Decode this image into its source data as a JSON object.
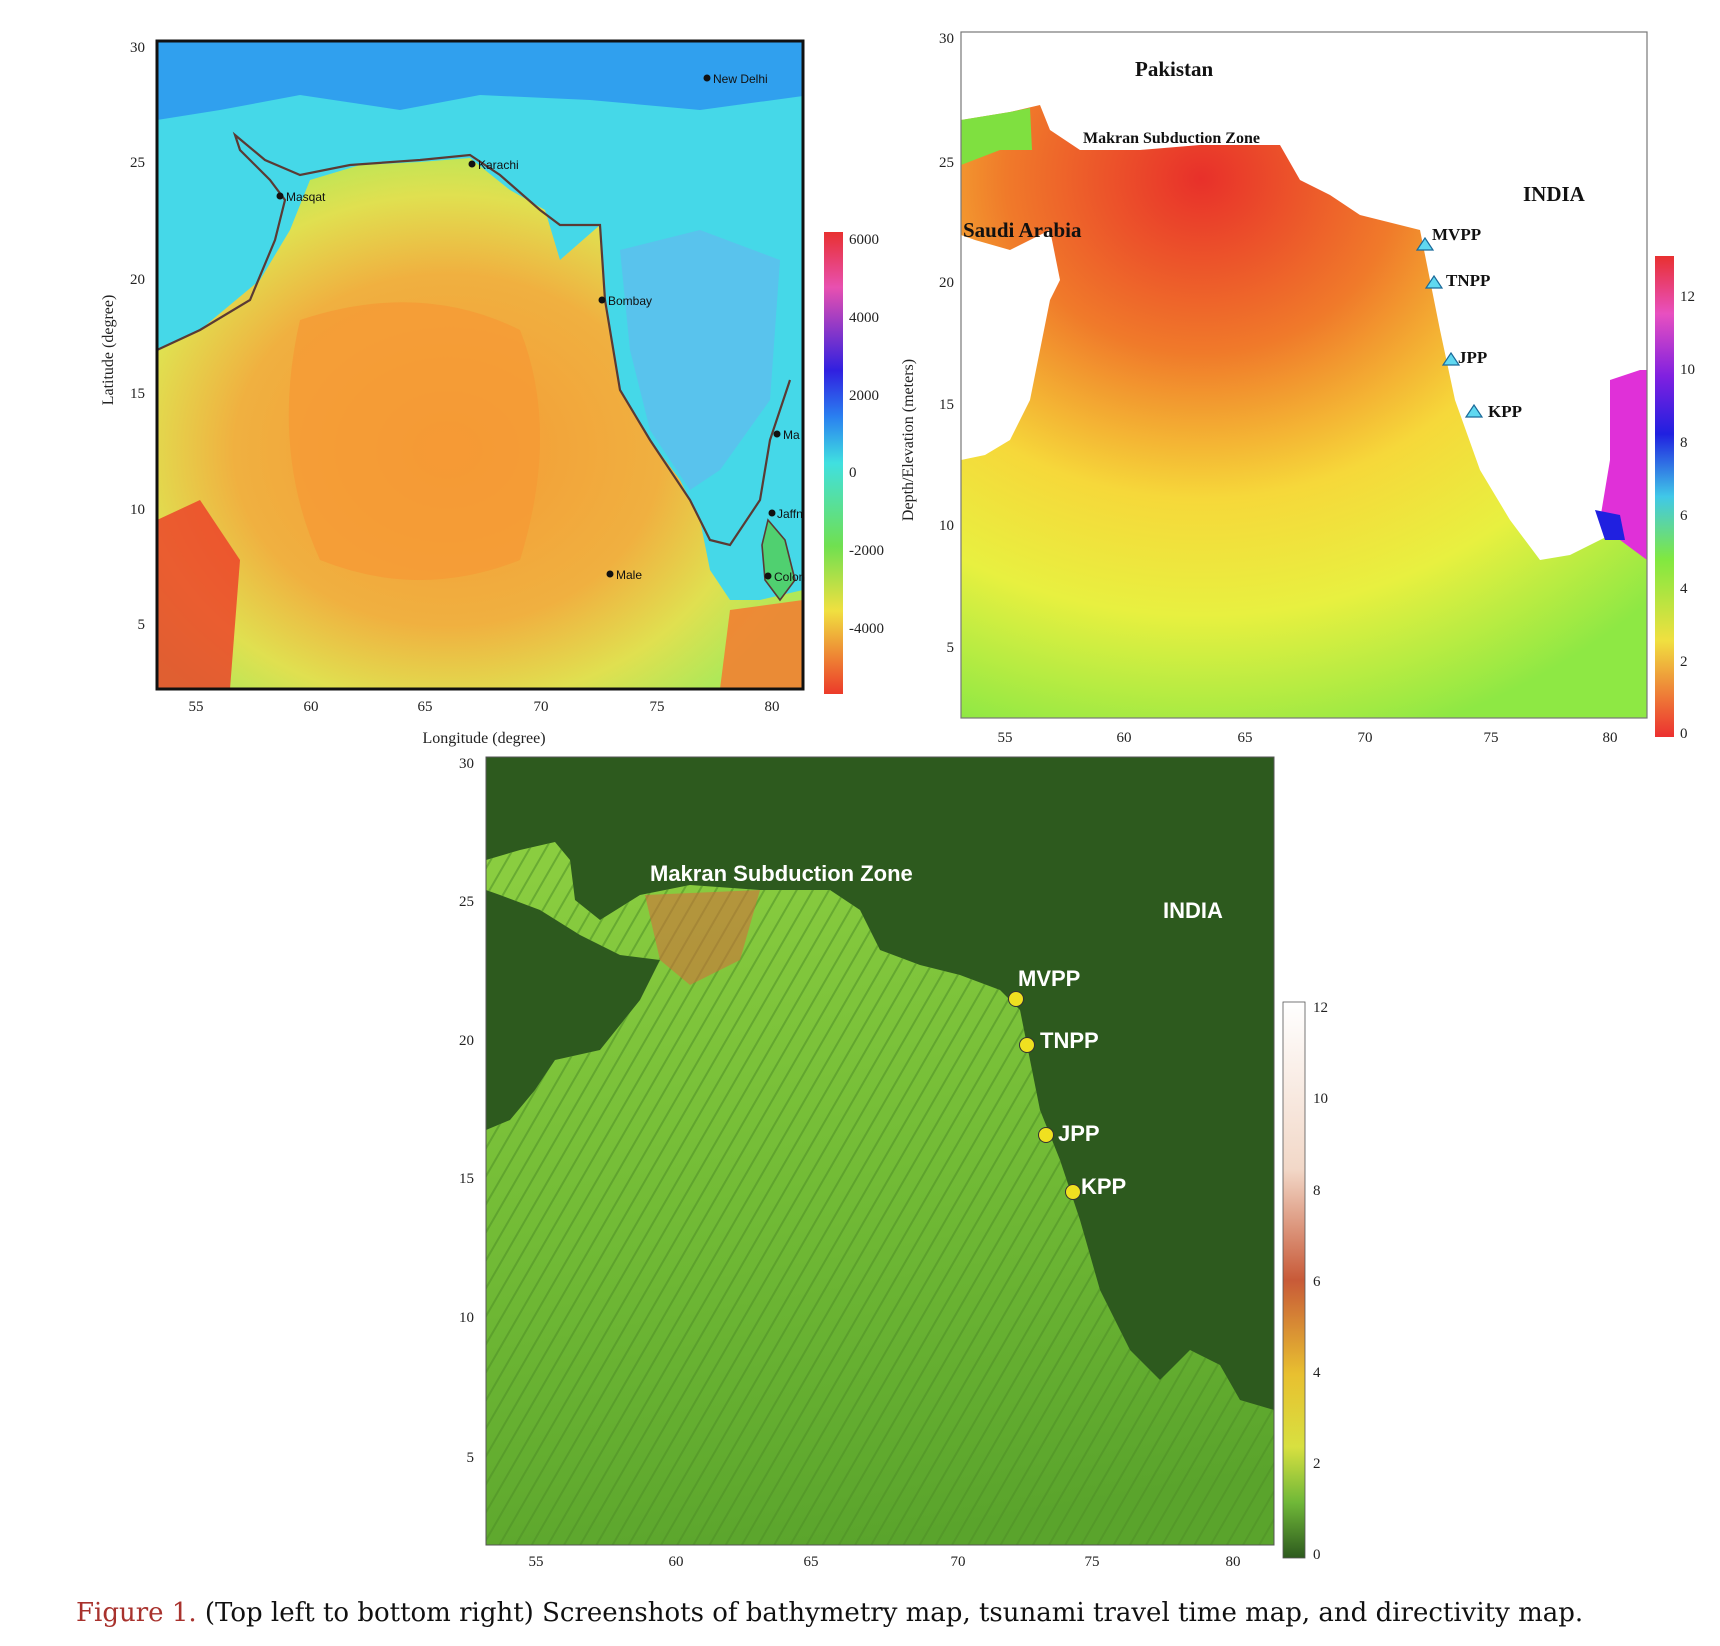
{
  "map1": {
    "x_ticks": [
      "55",
      "60",
      "65",
      "70",
      "75",
      "80"
    ],
    "y_ticks": [
      "30",
      "25",
      "20",
      "15",
      "10",
      "5"
    ],
    "x_label": "Longitude (degree)",
    "y_label": "Latitude (degree)",
    "colorbar_label": "Depth/Elevation (meters)",
    "colorbar_ticks": [
      "6000",
      "4000",
      "2000",
      "0",
      "-2000",
      "-4000"
    ],
    "cities": {
      "new_delhi": "New Delhi",
      "karachi": "Karachi",
      "masqat": "Masqat",
      "bombay": "Bombay",
      "madras": "Ma",
      "jaffna": "Jaffn",
      "male": "Male",
      "colombo": "Colon"
    }
  },
  "map2": {
    "x_ticks": [
      "55",
      "60",
      "65",
      "70",
      "75",
      "80"
    ],
    "y_ticks": [
      "30",
      "25",
      "20",
      "15",
      "10",
      "5"
    ],
    "colorbar_ticks": [
      "12",
      "10",
      "8",
      "6",
      "4",
      "2",
      "0"
    ],
    "labels": {
      "pakistan": "Pakistan",
      "makran": "Makran Subduction Zone",
      "india": "INDIA",
      "saudi": "Saudi Arabia"
    },
    "plants": {
      "mvpp": "MVPP",
      "tnpp": "TNPP",
      "jpp": "JPP",
      "kpp": "KPP"
    }
  },
  "map3": {
    "x_ticks": [
      "55",
      "60",
      "65",
      "70",
      "75",
      "80"
    ],
    "y_ticks": [
      "30",
      "25",
      "20",
      "15",
      "10",
      "5"
    ],
    "colorbar_ticks": [
      "12",
      "10",
      "8",
      "6",
      "4",
      "2",
      "0"
    ],
    "labels": {
      "makran": "Makran Subduction Zone",
      "india": "INDIA"
    },
    "plants": {
      "mvpp": "MVPP",
      "tnpp": "TNPP",
      "jpp": "JPP",
      "kpp": "KPP"
    }
  },
  "caption": {
    "label": "Figure 1.",
    "text": " (Top left to bottom right) Screenshots of bathymetry map, tsunami travel time map, and directivity map."
  },
  "colors": {
    "caption_label": "#a8322d",
    "ocean_deep": "#f07030",
    "land_low": "#40e0e0",
    "tsunami_land": "#7fe040",
    "directivity_land": "#2d5a1e"
  }
}
